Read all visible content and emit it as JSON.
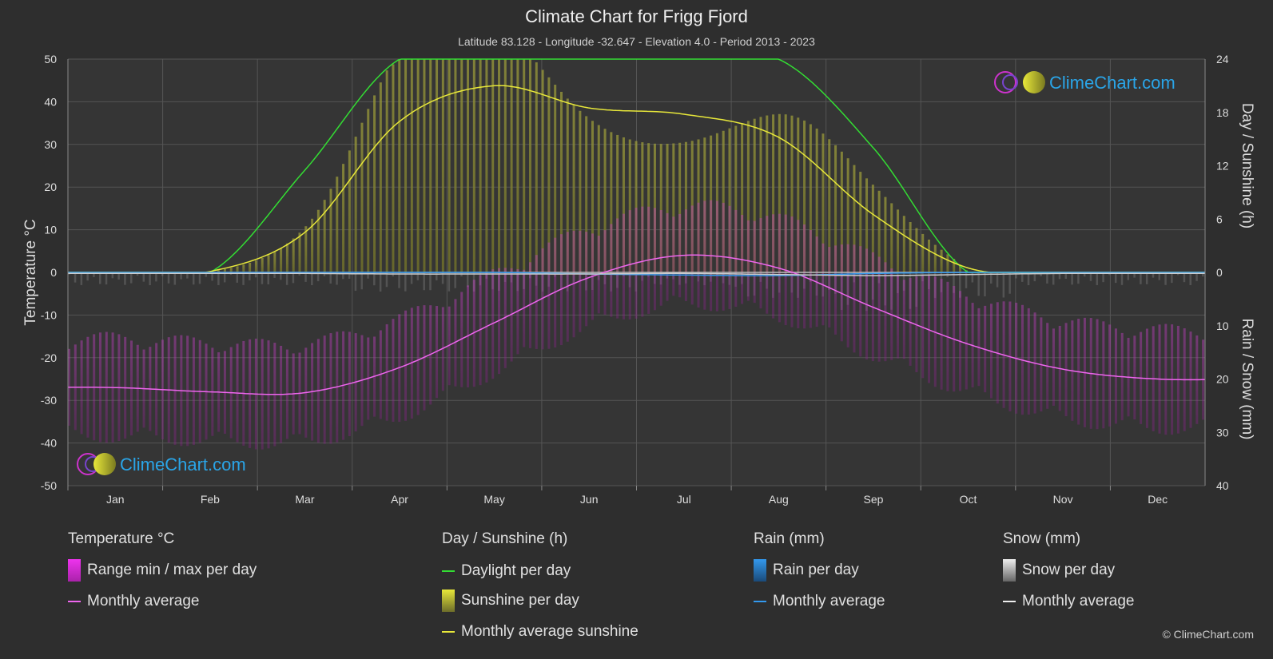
{
  "header": {
    "title": "Climate Chart for Frigg Fjord",
    "subtitle": "Latitude 83.128 - Longitude -32.647 - Elevation 4.0 - Period 2013 - 2023"
  },
  "watermark": "ClimeChart.com",
  "copyright": "© ClimeChart.com",
  "legend": {
    "temperature": {
      "title": "Temperature °C",
      "range": "Range min / max per day",
      "avg": "Monthly average"
    },
    "sunshine": {
      "title": "Day / Sunshine (h)",
      "daylight": "Daylight per day",
      "sunshine": "Sunshine per day",
      "avg": "Monthly average sunshine"
    },
    "rain": {
      "title": "Rain (mm)",
      "per_day": "Rain per day",
      "avg": "Monthly average"
    },
    "snow": {
      "title": "Snow (mm)",
      "per_day": "Snow per day",
      "avg": "Monthly average"
    }
  },
  "colors": {
    "background": "#2e2e2e",
    "daylight": "#33dd33",
    "sunshine_avg": "#e8e83a",
    "sunshine_fill": "#8a8a30",
    "temp_avg": "#ee66ee",
    "temp_range": "#b030b0",
    "rain": "#3399ee",
    "snow": "#cccccc",
    "watermark": "#2aa5e8"
  },
  "chart_data": {
    "type": "line",
    "categories": [
      "Jan",
      "Feb",
      "Mar",
      "Apr",
      "May",
      "Jun",
      "Jul",
      "Aug",
      "Sep",
      "Oct",
      "Nov",
      "Dec"
    ],
    "left_axis": {
      "label": "Temperature °C",
      "range": [
        -50,
        50
      ],
      "ticks": [
        50,
        40,
        30,
        20,
        10,
        0,
        -10,
        -20,
        -30,
        -40,
        -50
      ]
    },
    "right_axis_top": {
      "label": "Day / Sunshine (h)",
      "range": [
        0,
        24
      ],
      "ticks": [
        24,
        18,
        12,
        6,
        0
      ]
    },
    "right_axis_bottom": {
      "label": "Rain / Snow (mm)",
      "range": [
        0,
        40
      ],
      "ticks": [
        0,
        10,
        20,
        30,
        40
      ]
    },
    "grid": true,
    "series": [
      {
        "name": "Daylight per day",
        "axis": "hours",
        "values": [
          0,
          0,
          11.5,
          24,
          24,
          24,
          24,
          24,
          14,
          0,
          0,
          0
        ]
      },
      {
        "name": "Monthly average sunshine",
        "axis": "hours",
        "values": [
          0,
          0.1,
          4.5,
          17,
          21,
          18.5,
          17.8,
          15.2,
          6.5,
          0.5,
          0,
          0
        ]
      },
      {
        "name": "Monthly average",
        "axis": "temperature",
        "values": [
          -27,
          -28,
          -28.2,
          -22.3,
          -11.8,
          -1.2,
          4,
          1,
          -8.2,
          -16.8,
          -22.7,
          -25
        ]
      },
      {
        "name": "Rain monthly average",
        "axis": "mm",
        "values": [
          0,
          0,
          0,
          0,
          0,
          0.3,
          0.5,
          0.6,
          0.2,
          0,
          0,
          0
        ]
      },
      {
        "name": "Snow monthly average",
        "axis": "mm",
        "values": [
          0.2,
          0.2,
          0.2,
          0.3,
          0.3,
          0.3,
          0.2,
          0.4,
          0.6,
          0.4,
          0.2,
          0.2
        ]
      }
    ]
  }
}
